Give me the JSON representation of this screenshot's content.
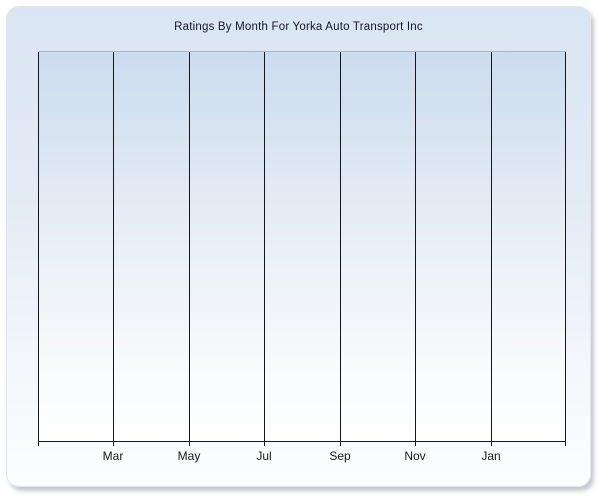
{
  "panel": {
    "background_top": "#dae5f3",
    "background_bottom": "#fcfdfe"
  },
  "chart_data": {
    "type": "line",
    "title": "Ratings By Month For Yorka Auto Transport Inc",
    "x_tick_labels": [
      "Mar",
      "May",
      "Jul",
      "Sep",
      "Nov",
      "Jan"
    ],
    "x_gridline_count": 8,
    "first_labeled_gridline_index": 1,
    "series": [],
    "values": [],
    "grid": "vertical-only",
    "legend": "none",
    "y_axis_labels": "none",
    "plot_background_top": "#cbdbee",
    "plot_background_bottom": "#ffffff",
    "plot_top_border_color": "#a9b2c6",
    "gridline_color": "#15151e",
    "axis_color": "#15151e",
    "label_color": "#1a1a1a",
    "title_color": "#14142a"
  }
}
